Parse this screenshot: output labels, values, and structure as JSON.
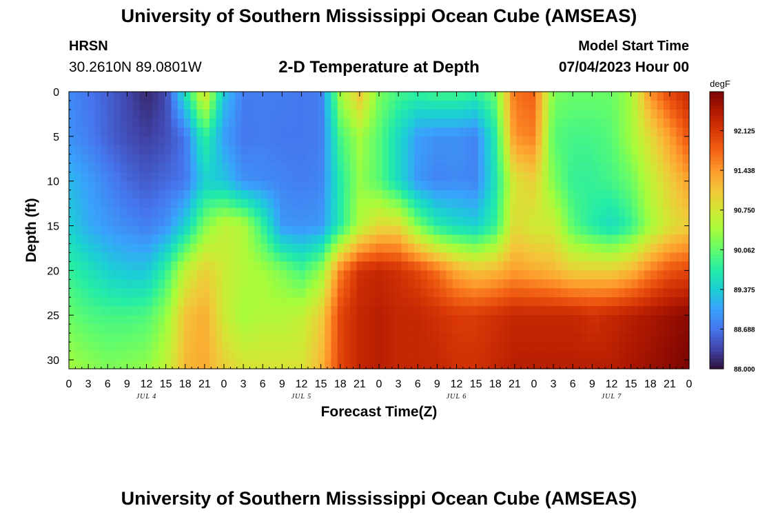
{
  "header": {
    "title": "University of Southern Mississippi Ocean Cube (AMSEAS)",
    "station": "HRSN",
    "coords": "30.2610N  89.0801W",
    "subtitle": "2-D Temperature at Depth",
    "start_label": "Model Start Time",
    "start_value": "07/04/2023 Hour 00"
  },
  "footer": {
    "title": "University of Southern Mississippi Ocean Cube (AMSEAS)"
  },
  "chart_data": {
    "type": "heatmap",
    "title": "2-D Temperature at Depth",
    "xlabel": "Forecast Time(Z)",
    "ylabel": "Depth (ft)",
    "xlim": [
      0,
      96
    ],
    "ylim": [
      0,
      31
    ],
    "x_tick_values": [
      0,
      3,
      6,
      9,
      12,
      15,
      18,
      21,
      24,
      27,
      30,
      33,
      36,
      39,
      42,
      45,
      48,
      51,
      54,
      57,
      60,
      63,
      66,
      69,
      72,
      75,
      78,
      81,
      84,
      87,
      90,
      93,
      96
    ],
    "x_tick_labels": [
      "0",
      "3",
      "6",
      "9",
      "12",
      "15",
      "18",
      "21",
      "0",
      "3",
      "6",
      "9",
      "12",
      "15",
      "18",
      "21",
      "0",
      "3",
      "6",
      "9",
      "12",
      "15",
      "18",
      "21",
      "0",
      "3",
      "6",
      "9",
      "12",
      "15",
      "18",
      "21",
      "0"
    ],
    "day_labels": [
      {
        "hour": 12,
        "label": "JUL 4"
      },
      {
        "hour": 36,
        "label": "JUL 5"
      },
      {
        "hour": 60,
        "label": "JUL 6"
      },
      {
        "hour": 84,
        "label": "JUL 7"
      }
    ],
    "y_tick_values": [
      0,
      5,
      10,
      15,
      20,
      25,
      30
    ],
    "colorbar": {
      "unit": "degF",
      "min": 88.0,
      "max": 92.8,
      "ticks": [
        "88.000",
        "88.688",
        "89.375",
        "90.062",
        "90.750",
        "91.438",
        "92.125"
      ]
    },
    "colormap": [
      "#30123b",
      "#4145ab",
      "#4675ed",
      "#39a2fc",
      "#1bcfd4",
      "#24eca6",
      "#61fc6c",
      "#a4fc3b",
      "#d1e834",
      "#f3c63a",
      "#fe9b2d",
      "#f36315",
      "#d93806",
      "#b11901",
      "#7a0402"
    ],
    "depths_ft": [
      0,
      5,
      10,
      15,
      20,
      25,
      31
    ],
    "times_h": [
      0,
      3,
      6,
      9,
      12,
      15,
      18,
      21,
      24,
      27,
      30,
      33,
      36,
      39,
      42,
      45,
      48,
      51,
      54,
      57,
      60,
      63,
      66,
      69,
      72,
      75,
      78,
      81,
      84,
      87,
      90,
      93,
      96
    ],
    "temperature_degF": [
      [
        88.85,
        88.7,
        88.55,
        88.35,
        88.15,
        88.35,
        89.6,
        90.9,
        89.3,
        88.75,
        88.75,
        88.75,
        88.7,
        88.75,
        90.4,
        91.1,
        90.2,
        89.9,
        89.8,
        89.9,
        89.9,
        89.8,
        90.1,
        91.7,
        91.8,
        90.2,
        90.1,
        90.1,
        90.1,
        90.4,
        91.5,
        92.0,
        92.3
      ],
      [
        88.9,
        88.75,
        88.55,
        88.4,
        88.3,
        88.4,
        88.7,
        89.8,
        89.0,
        88.7,
        88.75,
        88.7,
        88.7,
        88.75,
        89.9,
        90.4,
        90.0,
        89.5,
        89.0,
        88.9,
        88.9,
        88.8,
        89.7,
        91.5,
        91.6,
        90.0,
        89.9,
        89.9,
        90.0,
        90.4,
        90.9,
        91.4,
        91.9
      ],
      [
        89.2,
        89.0,
        88.8,
        88.6,
        88.5,
        88.6,
        88.7,
        89.4,
        89.3,
        88.9,
        88.85,
        88.8,
        88.75,
        88.8,
        89.7,
        90.3,
        90.0,
        89.5,
        88.95,
        88.8,
        88.85,
        88.8,
        89.6,
        90.8,
        91.0,
        90.2,
        89.8,
        89.8,
        89.9,
        90.1,
        90.6,
        91.0,
        91.4
      ],
      [
        89.4,
        89.1,
        88.95,
        88.85,
        88.75,
        88.9,
        89.4,
        90.2,
        90.6,
        90.5,
        89.8,
        88.95,
        88.9,
        88.95,
        89.7,
        90.5,
        90.9,
        90.9,
        90.2,
        89.7,
        89.5,
        89.4,
        89.8,
        90.9,
        90.7,
        90.7,
        90.0,
        89.7,
        89.5,
        89.8,
        90.4,
        90.8,
        91.0
      ],
      [
        89.8,
        89.6,
        89.4,
        89.3,
        89.3,
        89.8,
        90.6,
        91.0,
        90.7,
        90.5,
        90.4,
        90.2,
        89.9,
        90.3,
        91.6,
        92.2,
        92.3,
        92.2,
        92.0,
        91.7,
        91.3,
        91.1,
        91.2,
        91.4,
        91.3,
        91.2,
        91.0,
        91.0,
        91.0,
        91.2,
        91.6,
        91.9,
        92.0
      ],
      [
        90.1,
        89.95,
        89.9,
        89.9,
        89.95,
        90.3,
        91.1,
        91.3,
        90.7,
        90.4,
        90.5,
        90.5,
        90.6,
        91.0,
        92.0,
        92.3,
        92.4,
        92.3,
        92.3,
        92.2,
        92.1,
        92.1,
        92.2,
        92.3,
        92.3,
        92.3,
        92.3,
        92.2,
        92.3,
        92.4,
        92.5,
        92.6,
        92.7
      ],
      [
        90.4,
        90.3,
        90.2,
        90.25,
        90.3,
        90.6,
        91.2,
        91.3,
        91.0,
        90.8,
        90.8,
        90.8,
        90.8,
        91.2,
        92.0,
        92.3,
        92.4,
        92.3,
        92.3,
        92.3,
        92.2,
        92.2,
        92.3,
        92.4,
        92.4,
        92.4,
        92.4,
        92.4,
        92.4,
        92.5,
        92.6,
        92.7,
        92.8
      ]
    ]
  }
}
